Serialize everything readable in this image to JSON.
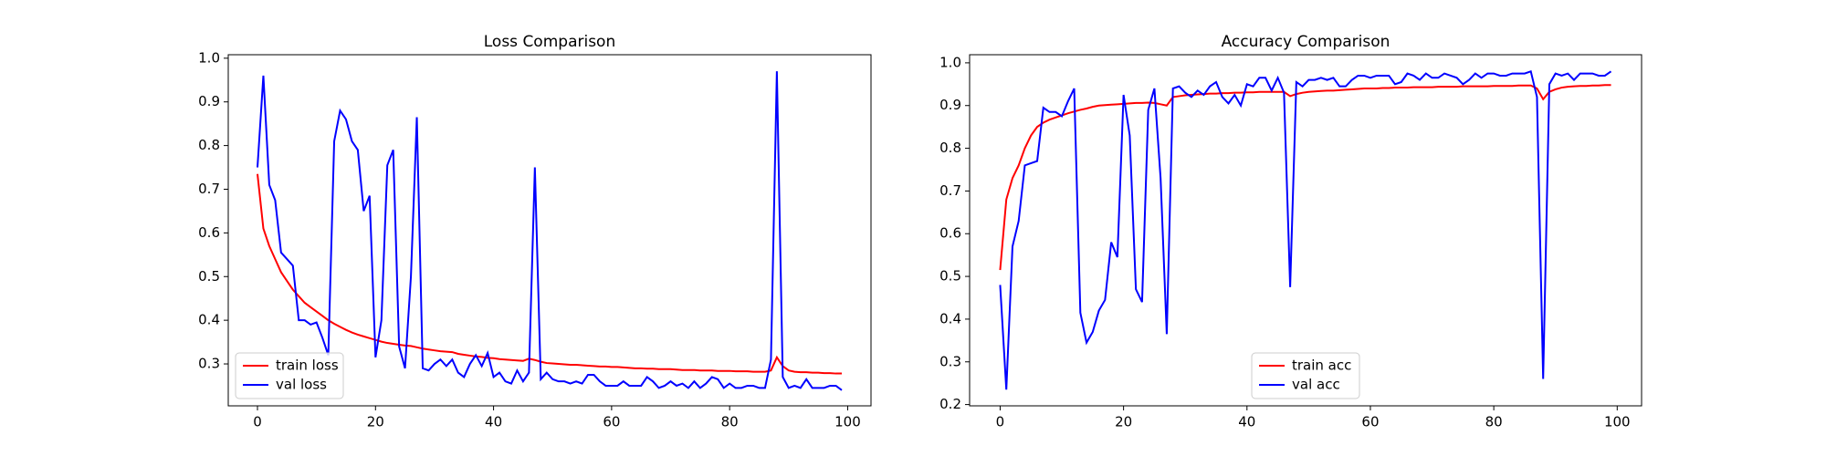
{
  "chart_data": [
    {
      "type": "line",
      "title": "Loss Comparison",
      "legend": "lower left",
      "x": [
        0,
        1,
        2,
        3,
        4,
        5,
        6,
        7,
        8,
        9,
        10,
        11,
        12,
        13,
        14,
        15,
        16,
        17,
        18,
        19,
        20,
        21,
        22,
        23,
        24,
        25,
        26,
        27,
        28,
        29,
        30,
        31,
        32,
        33,
        34,
        35,
        36,
        37,
        38,
        39,
        40,
        41,
        42,
        43,
        44,
        45,
        46,
        47,
        48,
        49,
        50,
        51,
        52,
        53,
        54,
        55,
        56,
        57,
        58,
        59,
        60,
        61,
        62,
        63,
        64,
        65,
        66,
        67,
        68,
        69,
        70,
        71,
        72,
        73,
        74,
        75,
        76,
        77,
        78,
        79,
        80,
        81,
        82,
        83,
        84,
        85,
        86,
        87,
        88,
        89,
        90,
        91,
        92,
        93,
        94,
        95,
        96,
        97,
        98,
        99
      ],
      "series": [
        {
          "name": "train loss",
          "color": "#ff0000",
          "values": [
            0.735,
            0.61,
            0.57,
            0.54,
            0.51,
            0.49,
            0.47,
            0.455,
            0.44,
            0.43,
            0.42,
            0.41,
            0.4,
            0.392,
            0.385,
            0.378,
            0.372,
            0.367,
            0.363,
            0.359,
            0.355,
            0.351,
            0.348,
            0.346,
            0.344,
            0.342,
            0.341,
            0.338,
            0.335,
            0.333,
            0.331,
            0.329,
            0.328,
            0.327,
            0.323,
            0.321,
            0.319,
            0.317,
            0.316,
            0.314,
            0.313,
            0.311,
            0.31,
            0.309,
            0.308,
            0.307,
            0.312,
            0.309,
            0.305,
            0.302,
            0.301,
            0.3,
            0.299,
            0.298,
            0.298,
            0.297,
            0.296,
            0.295,
            0.294,
            0.294,
            0.293,
            0.293,
            0.292,
            0.291,
            0.29,
            0.29,
            0.289,
            0.289,
            0.288,
            0.288,
            0.288,
            0.287,
            0.286,
            0.286,
            0.286,
            0.285,
            0.285,
            0.285,
            0.284,
            0.284,
            0.284,
            0.283,
            0.283,
            0.283,
            0.282,
            0.282,
            0.282,
            0.285,
            0.315,
            0.295,
            0.285,
            0.282,
            0.281,
            0.281,
            0.28,
            0.28,
            0.279,
            0.279,
            0.278,
            0.278
          ]
        },
        {
          "name": "val loss",
          "color": "#0000ff",
          "values": [
            0.75,
            0.96,
            0.71,
            0.675,
            0.555,
            0.54,
            0.525,
            0.4,
            0.4,
            0.39,
            0.395,
            0.36,
            0.32,
            0.81,
            0.88,
            0.86,
            0.81,
            0.79,
            0.65,
            0.685,
            0.315,
            0.4,
            0.755,
            0.79,
            0.34,
            0.29,
            0.5,
            0.865,
            0.29,
            0.285,
            0.3,
            0.31,
            0.295,
            0.31,
            0.28,
            0.27,
            0.3,
            0.32,
            0.295,
            0.325,
            0.27,
            0.28,
            0.26,
            0.255,
            0.285,
            0.26,
            0.28,
            0.75,
            0.265,
            0.28,
            0.265,
            0.26,
            0.26,
            0.255,
            0.26,
            0.255,
            0.275,
            0.275,
            0.26,
            0.25,
            0.25,
            0.25,
            0.26,
            0.25,
            0.25,
            0.25,
            0.27,
            0.26,
            0.245,
            0.25,
            0.26,
            0.25,
            0.255,
            0.245,
            0.26,
            0.245,
            0.255,
            0.27,
            0.265,
            0.245,
            0.255,
            0.245,
            0.245,
            0.25,
            0.25,
            0.245,
            0.245,
            0.31,
            0.97,
            0.27,
            0.245,
            0.25,
            0.245,
            0.265,
            0.245,
            0.245,
            0.245,
            0.25,
            0.25,
            0.24
          ]
        }
      ],
      "xlim": [
        -4.95,
        103.95
      ],
      "xticks": [
        0,
        20,
        40,
        60,
        80,
        100
      ],
      "ylim": [
        0.204,
        1.008
      ],
      "yticks": [
        0.3,
        0.4,
        0.5,
        0.6,
        0.7,
        0.8,
        0.9,
        {
          "value": 1,
          "label": "1.0"
        }
      ]
    },
    {
      "type": "line",
      "title": "Accuracy Comparison",
      "legend": "lower center",
      "x": [
        0,
        1,
        2,
        3,
        4,
        5,
        6,
        7,
        8,
        9,
        10,
        11,
        12,
        13,
        14,
        15,
        16,
        17,
        18,
        19,
        20,
        21,
        22,
        23,
        24,
        25,
        26,
        27,
        28,
        29,
        30,
        31,
        32,
        33,
        34,
        35,
        36,
        37,
        38,
        39,
        40,
        41,
        42,
        43,
        44,
        45,
        46,
        47,
        48,
        49,
        50,
        51,
        52,
        53,
        54,
        55,
        56,
        57,
        58,
        59,
        60,
        61,
        62,
        63,
        64,
        65,
        66,
        67,
        68,
        69,
        70,
        71,
        72,
        73,
        74,
        75,
        76,
        77,
        78,
        79,
        80,
        81,
        82,
        83,
        84,
        85,
        86,
        87,
        88,
        89,
        90,
        91,
        92,
        93,
        94,
        95,
        96,
        97,
        98,
        99
      ],
      "series": [
        {
          "name": "train acc",
          "color": "#ff0000",
          "values": [
            0.515,
            0.68,
            0.73,
            0.76,
            0.8,
            0.83,
            0.85,
            0.86,
            0.867,
            0.872,
            0.877,
            0.882,
            0.886,
            0.89,
            0.893,
            0.897,
            0.9,
            0.901,
            0.902,
            0.903,
            0.904,
            0.905,
            0.906,
            0.906,
            0.907,
            0.906,
            0.903,
            0.9,
            0.92,
            0.922,
            0.924,
            0.925,
            0.926,
            0.927,
            0.928,
            0.928,
            0.929,
            0.929,
            0.93,
            0.93,
            0.931,
            0.931,
            0.932,
            0.932,
            0.932,
            0.932,
            0.932,
            0.922,
            0.927,
            0.93,
            0.932,
            0.933,
            0.934,
            0.935,
            0.935,
            0.936,
            0.937,
            0.938,
            0.939,
            0.94,
            0.94,
            0.94,
            0.941,
            0.941,
            0.942,
            0.942,
            0.942,
            0.943,
            0.943,
            0.943,
            0.943,
            0.944,
            0.944,
            0.944,
            0.944,
            0.945,
            0.945,
            0.945,
            0.945,
            0.945,
            0.946,
            0.946,
            0.946,
            0.946,
            0.947,
            0.947,
            0.947,
            0.94,
            0.915,
            0.932,
            0.938,
            0.942,
            0.944,
            0.945,
            0.946,
            0.946,
            0.947,
            0.947,
            0.948,
            0.948
          ]
        },
        {
          "name": "val acc",
          "color": "#0000ff",
          "values": [
            0.48,
            0.235,
            0.57,
            0.63,
            0.76,
            0.765,
            0.77,
            0.895,
            0.885,
            0.885,
            0.875,
            0.91,
            0.94,
            0.415,
            0.345,
            0.37,
            0.42,
            0.445,
            0.58,
            0.545,
            0.925,
            0.83,
            0.47,
            0.44,
            0.89,
            0.94,
            0.73,
            0.365,
            0.94,
            0.945,
            0.93,
            0.92,
            0.935,
            0.925,
            0.945,
            0.955,
            0.92,
            0.905,
            0.925,
            0.9,
            0.95,
            0.945,
            0.965,
            0.965,
            0.935,
            0.965,
            0.93,
            0.475,
            0.955,
            0.945,
            0.96,
            0.96,
            0.965,
            0.96,
            0.965,
            0.945,
            0.945,
            0.96,
            0.97,
            0.97,
            0.965,
            0.97,
            0.97,
            0.97,
            0.95,
            0.955,
            0.975,
            0.97,
            0.96,
            0.975,
            0.965,
            0.965,
            0.975,
            0.97,
            0.965,
            0.95,
            0.96,
            0.975,
            0.965,
            0.975,
            0.975,
            0.97,
            0.97,
            0.975,
            0.975,
            0.975,
            0.98,
            0.92,
            0.26,
            0.95,
            0.975,
            0.97,
            0.975,
            0.96,
            0.975,
            0.975,
            0.975,
            0.97,
            0.97,
            0.98
          ]
        }
      ],
      "xlim": [
        -4.95,
        103.95
      ],
      "xticks": [
        0,
        20,
        40,
        60,
        80,
        100
      ],
      "ylim": [
        0.197,
        1.019
      ],
      "yticks": [
        0.2,
        0.3,
        0.4,
        0.5,
        0.6,
        0.7,
        0.8,
        0.9,
        {
          "value": 1,
          "label": "1.0"
        }
      ]
    }
  ]
}
